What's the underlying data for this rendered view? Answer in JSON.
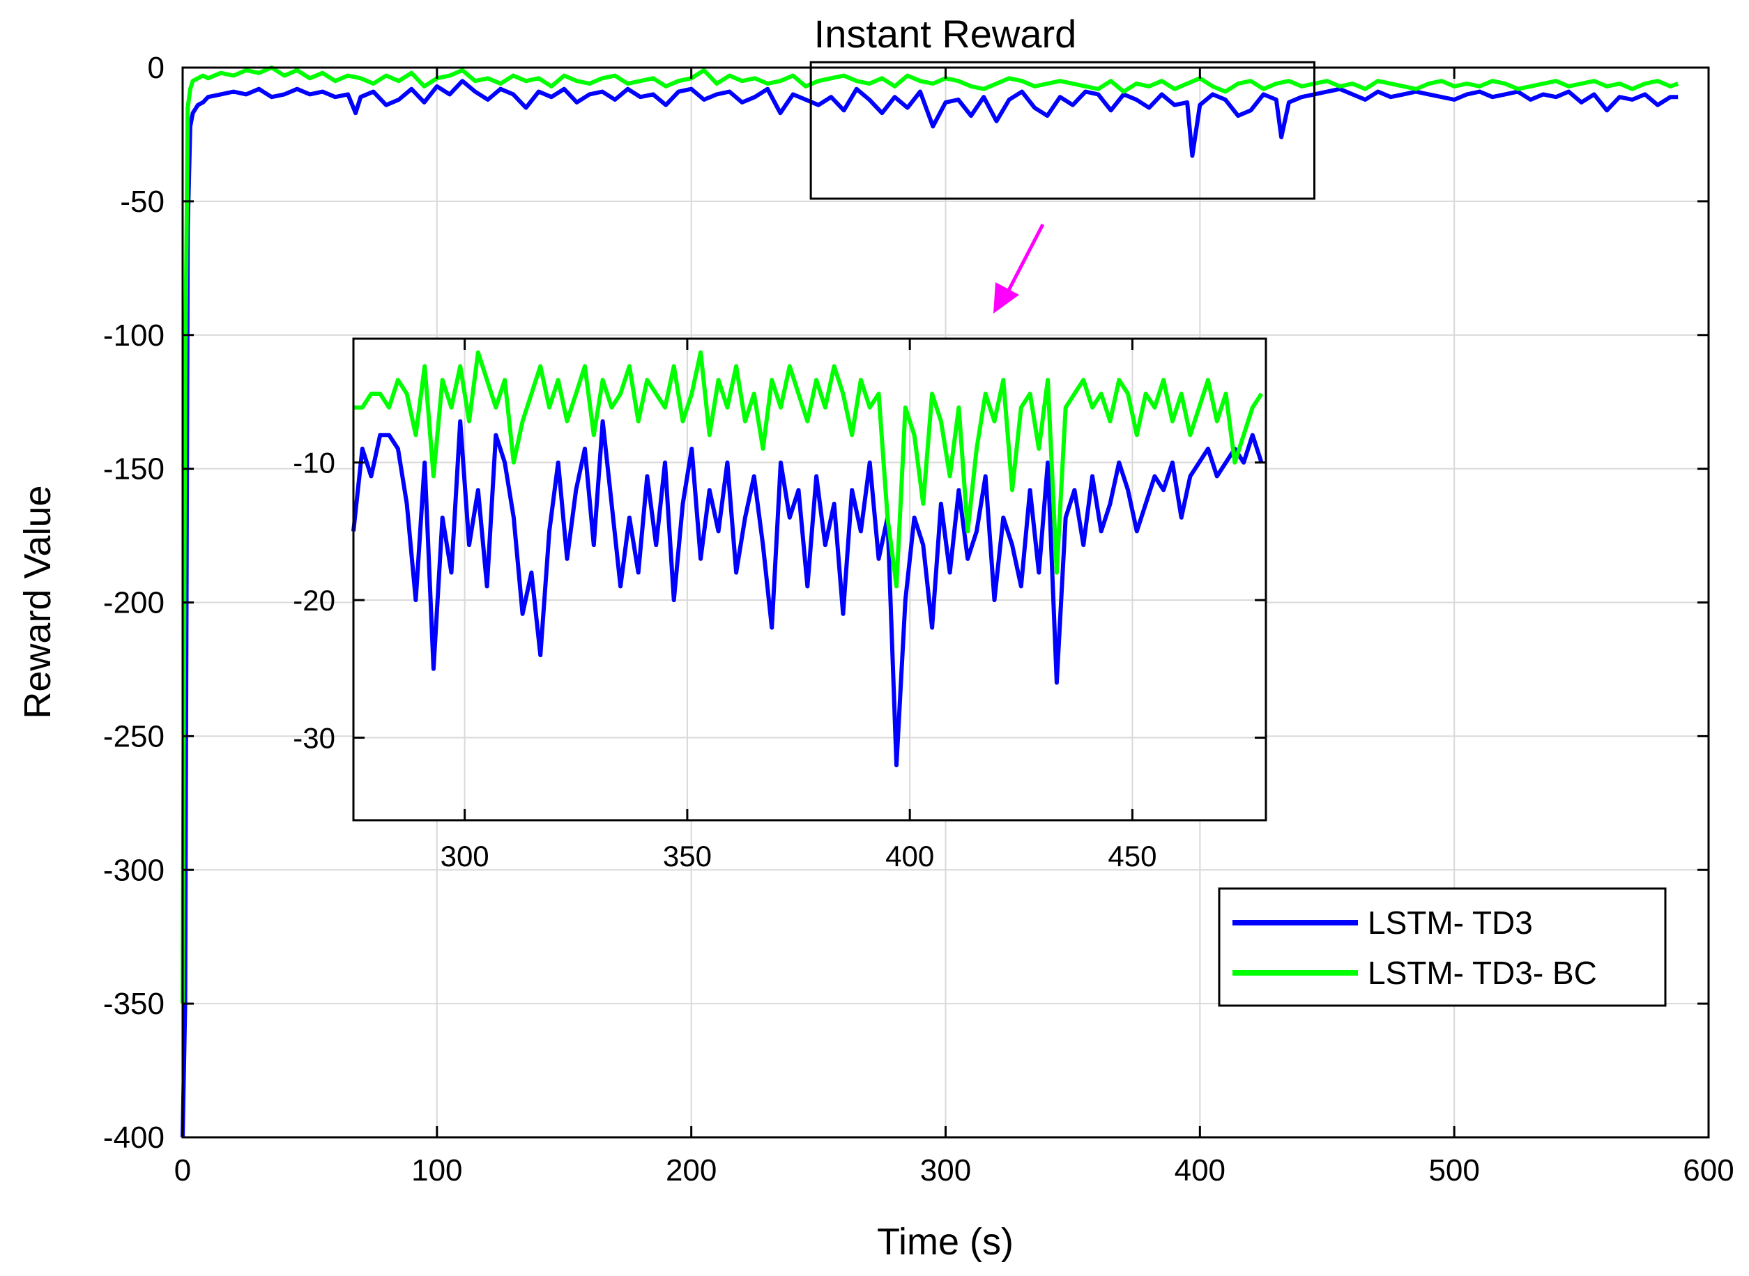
{
  "chart_data": [
    {
      "type": "line",
      "panel": "main",
      "title": "Instant Reward",
      "xlabel": "Time (s)",
      "ylabel": "Reward Value",
      "xlim": [
        0,
        600
      ],
      "ylim": [
        -400,
        0
      ],
      "xticks": [
        0,
        100,
        200,
        300,
        400,
        500,
        600
      ],
      "yticks": [
        -400,
        -350,
        -300,
        -250,
        -200,
        -150,
        -100,
        -50,
        0
      ],
      "grid": true,
      "legend_position": "bottom-right",
      "zoom_box": {
        "x_range": [
          247,
          445
        ],
        "y_range": [
          -49,
          2
        ]
      },
      "series": [
        {
          "name": "LSTM- TD3",
          "color": "#0000ff",
          "x": [
            0,
            1,
            2,
            3,
            4,
            6,
            8,
            10,
            15,
            20,
            25,
            30,
            35,
            40,
            45,
            50,
            55,
            60,
            65,
            68,
            70,
            75,
            80,
            85,
            90,
            95,
            100,
            105,
            110,
            115,
            120,
            125,
            130,
            135,
            140,
            145,
            150,
            155,
            160,
            165,
            170,
            175,
            180,
            185,
            190,
            195,
            200,
            205,
            210,
            215,
            220,
            225,
            230,
            235,
            240,
            245,
            250,
            255,
            260,
            265,
            270,
            275,
            280,
            285,
            290,
            295,
            300,
            305,
            310,
            315,
            320,
            325,
            330,
            335,
            340,
            345,
            350,
            355,
            360,
            365,
            370,
            375,
            380,
            385,
            390,
            395,
            397,
            400,
            405,
            410,
            415,
            420,
            425,
            430,
            432,
            435,
            440,
            445,
            450,
            455,
            460,
            465,
            470,
            475,
            480,
            485,
            490,
            495,
            500,
            505,
            510,
            515,
            520,
            525,
            530,
            535,
            540,
            545,
            550,
            555,
            560,
            565,
            570,
            575,
            580,
            585,
            588
          ],
          "values": [
            -400,
            -350,
            -60,
            -22,
            -17,
            -14,
            -13,
            -11,
            -10,
            -9,
            -10,
            -8,
            -11,
            -10,
            -8,
            -10,
            -9,
            -11,
            -10,
            -17,
            -11,
            -9,
            -14,
            -12,
            -8,
            -13,
            -7,
            -10,
            -5,
            -9,
            -12,
            -8,
            -10,
            -15,
            -9,
            -11,
            -8,
            -13,
            -10,
            -9,
            -12,
            -8,
            -11,
            -10,
            -14,
            -9,
            -8,
            -12,
            -10,
            -9,
            -13,
            -11,
            -8,
            -17,
            -10,
            -12,
            -14,
            -11,
            -16,
            -8,
            -12,
            -17,
            -11,
            -15,
            -9,
            -22,
            -13,
            -12,
            -18,
            -11,
            -20,
            -12,
            -9,
            -15,
            -18,
            -11,
            -14,
            -9,
            -10,
            -16,
            -10,
            -12,
            -15,
            -10,
            -14,
            -13,
            -33,
            -14,
            -10,
            -12,
            -18,
            -16,
            -10,
            -12,
            -26,
            -13,
            -11,
            -10,
            -9,
            -8,
            -10,
            -12,
            -9,
            -11,
            -10,
            -9,
            -10,
            -11,
            -12,
            -10,
            -9,
            -11,
            -10,
            -9,
            -12,
            -10,
            -11,
            -9,
            -13,
            -10,
            -16,
            -11,
            -12,
            -10,
            -14,
            -11,
            -11
          ]
        },
        {
          "name": "LSTM- TD3- BC",
          "color": "#00ff00",
          "x": [
            0,
            1,
            2,
            3,
            4,
            6,
            8,
            10,
            15,
            20,
            25,
            30,
            35,
            40,
            45,
            50,
            55,
            60,
            65,
            70,
            75,
            80,
            85,
            90,
            95,
            100,
            105,
            110,
            115,
            120,
            125,
            130,
            135,
            140,
            145,
            150,
            155,
            160,
            165,
            170,
            175,
            180,
            185,
            190,
            195,
            200,
            205,
            210,
            215,
            220,
            225,
            230,
            235,
            240,
            245,
            250,
            255,
            260,
            265,
            270,
            275,
            280,
            285,
            290,
            295,
            300,
            305,
            310,
            315,
            320,
            325,
            330,
            335,
            340,
            345,
            350,
            355,
            360,
            365,
            370,
            375,
            380,
            385,
            390,
            395,
            400,
            405,
            410,
            415,
            420,
            425,
            430,
            435,
            440,
            445,
            450,
            455,
            460,
            465,
            470,
            475,
            480,
            485,
            490,
            495,
            500,
            505,
            510,
            515,
            520,
            525,
            530,
            535,
            540,
            545,
            550,
            555,
            560,
            565,
            570,
            575,
            580,
            585,
            588
          ],
          "values": [
            -350,
            -120,
            -15,
            -8,
            -5,
            -4,
            -3,
            -4,
            -2,
            -3,
            -1,
            -2,
            0,
            -3,
            -1,
            -4,
            -2,
            -5,
            -3,
            -4,
            -6,
            -3,
            -5,
            -2,
            -7,
            -4,
            -3,
            -1,
            -5,
            -4,
            -6,
            -3,
            -5,
            -4,
            -7,
            -3,
            -5,
            -6,
            -4,
            -3,
            -6,
            -5,
            -4,
            -7,
            -5,
            -4,
            -1,
            -6,
            -3,
            -5,
            -4,
            -6,
            -5,
            -3,
            -7,
            -5,
            -4,
            -3,
            -5,
            -6,
            -4,
            -7,
            -3,
            -5,
            -6,
            -4,
            -5,
            -7,
            -8,
            -6,
            -4,
            -5,
            -7,
            -6,
            -5,
            -6,
            -7,
            -8,
            -5,
            -9,
            -6,
            -7,
            -5,
            -8,
            -6,
            -4,
            -7,
            -9,
            -6,
            -5,
            -8,
            -6,
            -5,
            -7,
            -6,
            -5,
            -7,
            -6,
            -8,
            -5,
            -6,
            -7,
            -8,
            -6,
            -5,
            -7,
            -6,
            -7,
            -5,
            -6,
            -8,
            -7,
            -6,
            -5,
            -7,
            -6,
            -5,
            -7,
            -6,
            -8,
            -6,
            -5,
            -7,
            -6
          ]
        }
      ]
    },
    {
      "type": "line",
      "panel": "inset",
      "xlim": [
        275,
        480
      ],
      "ylim": [
        -36,
        -1
      ],
      "xticks": [
        300,
        350,
        400,
        450
      ],
      "yticks": [
        -30,
        -20,
        -10
      ],
      "grid": true,
      "series": [
        {
          "name": "LSTM- TD3",
          "color": "#0000ff",
          "x": [
            275,
            277,
            279,
            281,
            283,
            285,
            287,
            289,
            291,
            293,
            295,
            297,
            299,
            301,
            303,
            305,
            307,
            309,
            311,
            313,
            315,
            317,
            319,
            321,
            323,
            325,
            327,
            329,
            331,
            333,
            335,
            337,
            339,
            341,
            343,
            345,
            347,
            349,
            351,
            353,
            355,
            357,
            359,
            361,
            363,
            365,
            367,
            369,
            371,
            373,
            375,
            377,
            379,
            381,
            383,
            385,
            387,
            389,
            391,
            393,
            395,
            397,
            399,
            401,
            403,
            405,
            407,
            409,
            411,
            413,
            415,
            417,
            419,
            421,
            423,
            425,
            427,
            429,
            431,
            433,
            435,
            437,
            439,
            441,
            443,
            445,
            447,
            449,
            451,
            453,
            455,
            457,
            459,
            461,
            463,
            465,
            467,
            469,
            471,
            473,
            475,
            477,
            479
          ],
          "values": [
            -15,
            -9,
            -11,
            -8,
            -8,
            -9,
            -13,
            -20,
            -10,
            -25,
            -14,
            -18,
            -7,
            -16,
            -12,
            -19,
            -8,
            -10,
            -14,
            -21,
            -18,
            -24,
            -15,
            -10,
            -17,
            -12,
            -9,
            -16,
            -7,
            -13,
            -19,
            -14,
            -18,
            -11,
            -16,
            -10,
            -20,
            -13,
            -9,
            -17,
            -12,
            -15,
            -10,
            -18,
            -14,
            -11,
            -16,
            -22,
            -10,
            -14,
            -12,
            -19,
            -11,
            -16,
            -13,
            -21,
            -12,
            -15,
            -10,
            -17,
            -14,
            -32,
            -20,
            -14,
            -16,
            -22,
            -13,
            -18,
            -12,
            -17,
            -15,
            -11,
            -20,
            -14,
            -16,
            -19,
            -12,
            -18,
            -10,
            -26,
            -14,
            -12,
            -16,
            -11,
            -15,
            -13,
            -10,
            -12,
            -15,
            -13,
            -11,
            -12,
            -10,
            -14,
            -11,
            -10,
            -9,
            -11,
            -10,
            -9,
            -10,
            -8,
            -10
          ]
        },
        {
          "name": "LSTM- TD3- BC",
          "color": "#00ff00",
          "x": [
            275,
            277,
            279,
            281,
            283,
            285,
            287,
            289,
            291,
            293,
            295,
            297,
            299,
            301,
            303,
            305,
            307,
            309,
            311,
            313,
            315,
            317,
            319,
            321,
            323,
            325,
            327,
            329,
            331,
            333,
            335,
            337,
            339,
            341,
            343,
            345,
            347,
            349,
            351,
            353,
            355,
            357,
            359,
            361,
            363,
            365,
            367,
            369,
            371,
            373,
            375,
            377,
            379,
            381,
            383,
            385,
            387,
            389,
            391,
            393,
            395,
            397,
            399,
            401,
            403,
            405,
            407,
            409,
            411,
            413,
            415,
            417,
            419,
            421,
            423,
            425,
            427,
            429,
            431,
            433,
            435,
            437,
            439,
            441,
            443,
            445,
            447,
            449,
            451,
            453,
            455,
            457,
            459,
            461,
            463,
            465,
            467,
            469,
            471,
            473,
            475,
            477,
            479
          ],
          "values": [
            -6,
            -6,
            -5,
            -5,
            -6,
            -4,
            -5,
            -8,
            -3,
            -11,
            -4,
            -6,
            -3,
            -7,
            -2,
            -4,
            -6,
            -4,
            -10,
            -7,
            -5,
            -3,
            -6,
            -4,
            -7,
            -5,
            -3,
            -8,
            -4,
            -6,
            -5,
            -3,
            -7,
            -4,
            -5,
            -6,
            -3,
            -7,
            -5,
            -2,
            -8,
            -4,
            -6,
            -3,
            -7,
            -5,
            -9,
            -4,
            -6,
            -3,
            -5,
            -7,
            -4,
            -6,
            -3,
            -5,
            -8,
            -4,
            -6,
            -5,
            -14,
            -19,
            -6,
            -8,
            -13,
            -5,
            -7,
            -11,
            -6,
            -15,
            -9,
            -5,
            -7,
            -4,
            -12,
            -6,
            -5,
            -9,
            -4,
            -18,
            -6,
            -5,
            -4,
            -6,
            -5,
            -7,
            -4,
            -5,
            -8,
            -5,
            -6,
            -4,
            -7,
            -5,
            -8,
            -6,
            -4,
            -7,
            -5,
            -10,
            -8,
            -6,
            -5
          ]
        }
      ]
    }
  ]
}
